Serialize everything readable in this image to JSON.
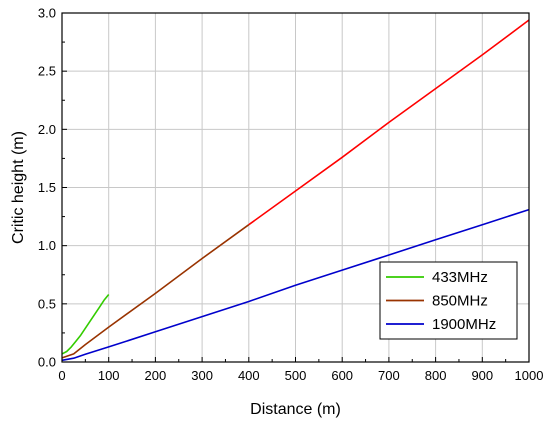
{
  "chart_data": {
    "type": "line",
    "title": "",
    "xlabel": "Distance (m)",
    "ylabel": "Critic height (m)",
    "xlim": [
      0,
      1000
    ],
    "ylim": [
      0,
      3.0
    ],
    "xticks": [
      0,
      100,
      200,
      300,
      400,
      500,
      600,
      700,
      800,
      900,
      1000
    ],
    "yticks": [
      0.0,
      0.5,
      1.0,
      1.5,
      2.0,
      2.5,
      3.0
    ],
    "xtick_labels": [
      "0",
      "100",
      "200",
      "300",
      "400",
      "500",
      "600",
      "700",
      "800",
      "900",
      "1000"
    ],
    "ytick_labels": [
      "0.0",
      "0.5",
      "1.0",
      "1.5",
      "2.0",
      "2.5",
      "3.0"
    ],
    "grid": true,
    "legend_position": "bottom-right",
    "series": [
      {
        "name": "433MHz",
        "color": "#33cc00",
        "x": [
          0,
          10,
          20,
          30,
          40,
          50,
          60,
          70,
          80,
          90,
          100
        ],
        "y": [
          0.07,
          0.09,
          0.13,
          0.18,
          0.23,
          0.29,
          0.35,
          0.41,
          0.47,
          0.53,
          0.58
        ]
      },
      {
        "name": "850MHz",
        "color": "#993300",
        "x": [
          0,
          25,
          50,
          100,
          200,
          300,
          400
        ],
        "y": [
          0.035,
          0.07,
          0.15,
          0.3,
          0.59,
          0.89,
          1.18
        ]
      },
      {
        "name": "",
        "color": "#ff0000",
        "x": [
          400,
          500,
          600,
          700,
          800,
          900,
          1000
        ],
        "y": [
          1.18,
          1.47,
          1.76,
          2.06,
          2.35,
          2.64,
          2.94
        ]
      },
      {
        "name": "1900MHz",
        "color": "#0000cc",
        "x": [
          0,
          25,
          50,
          100,
          200,
          300,
          400,
          500,
          600,
          700,
          800,
          900,
          1000
        ],
        "y": [
          0.015,
          0.033,
          0.066,
          0.13,
          0.26,
          0.39,
          0.52,
          0.66,
          0.79,
          0.92,
          1.05,
          1.18,
          1.31
        ]
      }
    ],
    "legend": [
      {
        "label": "433MHz",
        "color": "#33cc00"
      },
      {
        "label": "850MHz",
        "color": "#993300"
      },
      {
        "label": "1900MHz",
        "color": "#0000cc"
      }
    ]
  }
}
